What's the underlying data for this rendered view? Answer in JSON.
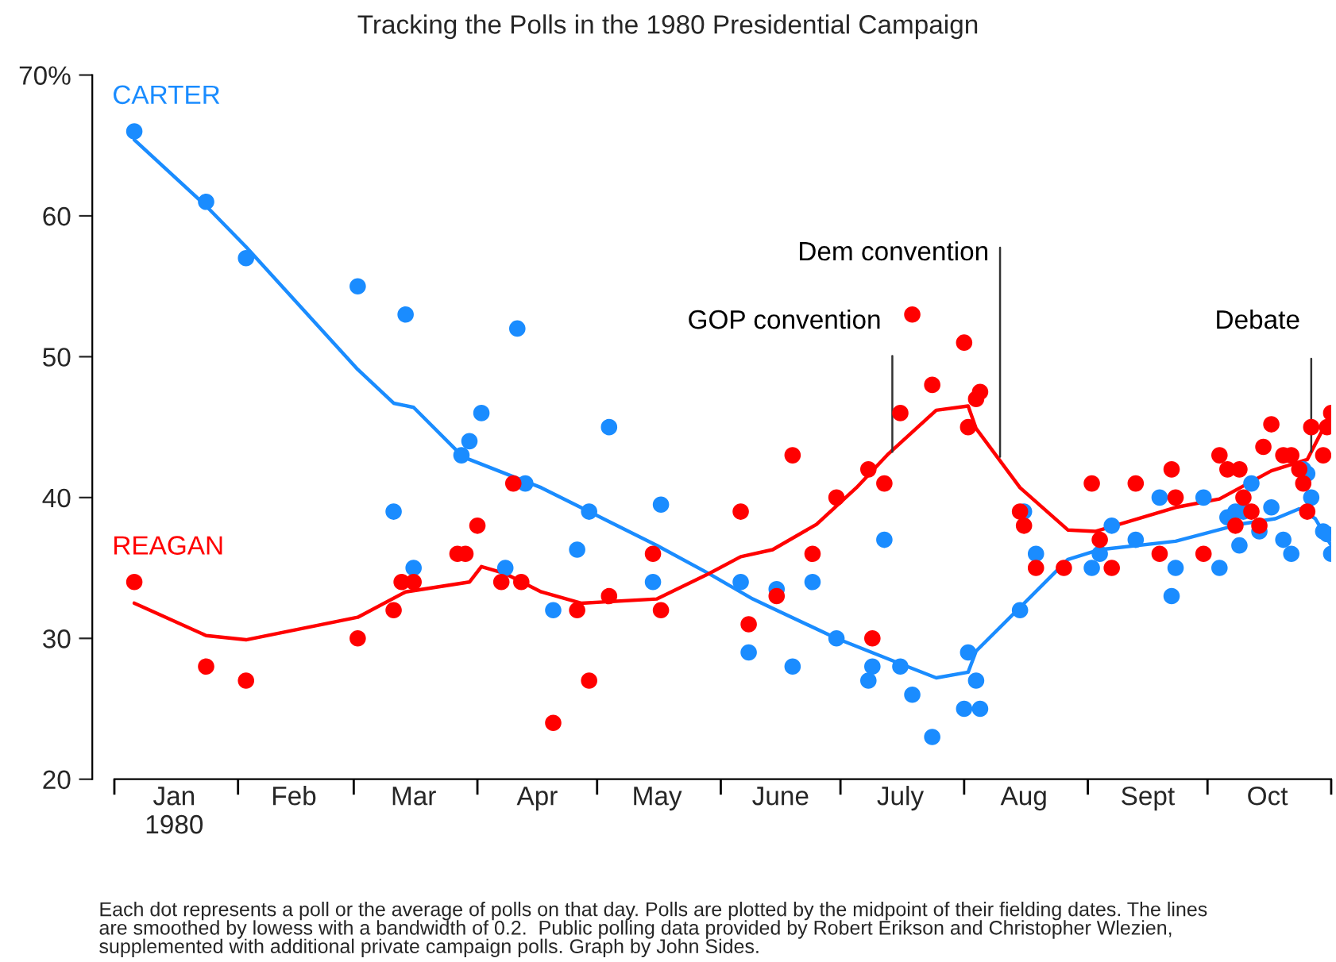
{
  "chart_data": {
    "type": "scatter",
    "title": "Tracking the Polls in the 1980 Presidential Campaign",
    "annotations": [
      "Each dot represents a poll or the average of polls on that day. Polls are plotted by the midpoint of their fielding dates. The lines\nare smoothed by lowess with a bandwidth of 0.2.  Public polling data provided by Robert Erikson and Christopher Wlezien,\nsupplemented with additional private campaign polls. Graph by John Sides."
    ],
    "xlim": [
      "1980-01-01",
      "1980-11-01"
    ],
    "xticks": [
      {
        "value": "1980-01-01",
        "label": null
      },
      {
        "value": "1980-01-16",
        "label": "Jan\n1980"
      },
      {
        "value": "1980-02-01",
        "label": null
      },
      {
        "value": "1980-02-15",
        "label": "Feb"
      },
      {
        "value": "1980-03-01",
        "label": null
      },
      {
        "value": "1980-03-16",
        "label": "Mar"
      },
      {
        "value": "1980-04-01",
        "label": null
      },
      {
        "value": "1980-04-16",
        "label": "Apr"
      },
      {
        "value": "1980-05-01",
        "label": null
      },
      {
        "value": "1980-05-16",
        "label": "May"
      },
      {
        "value": "1980-06-01",
        "label": null
      },
      {
        "value": "1980-06-16",
        "label": "June"
      },
      {
        "value": "1980-07-01",
        "label": null
      },
      {
        "value": "1980-07-16",
        "label": "July"
      },
      {
        "value": "1980-08-01",
        "label": null
      },
      {
        "value": "1980-08-16",
        "label": "Aug"
      },
      {
        "value": "1980-09-01",
        "label": null
      },
      {
        "value": "1980-09-16",
        "label": "Sept"
      },
      {
        "value": "1980-10-01",
        "label": null
      },
      {
        "value": "1980-10-16",
        "label": "Oct"
      },
      {
        "value": "1980-11-01",
        "label": null
      }
    ],
    "ylim": [
      20,
      70
    ],
    "yticks": [
      20,
      30,
      40,
      50,
      60,
      {
        "value": 70,
        "label": "70%"
      }
    ],
    "grid": false,
    "legend": false,
    "ref_lines": [
      {
        "axis": "x",
        "value": "1980-07-14",
        "label": "GOP convention",
        "color": "#333333"
      },
      {
        "axis": "x",
        "value": "1980-08-10",
        "label": "Dem convention",
        "color": "#333333"
      },
      {
        "axis": "x",
        "value": "1980-10-27",
        "label": "Debate",
        "color": "#333333"
      }
    ],
    "series": [
      {
        "name": "CARTER",
        "type": "scatter",
        "marker": "circle",
        "color": "#1a8cff",
        "x": [
          "1980-01-06",
          "1980-01-24",
          "1980-02-03",
          "1980-03-02",
          "1980-03-11",
          "1980-03-14",
          "1980-03-16",
          "1980-03-28",
          "1980-03-30",
          "1980-04-02",
          "1980-04-08",
          "1980-04-11",
          "1980-04-13",
          "1980-04-20",
          "1980-04-26",
          "1980-04-29",
          "1980-05-04",
          "1980-05-15",
          "1980-05-17",
          "1980-06-06",
          "1980-06-08",
          "1980-06-15",
          "1980-06-19",
          "1980-06-24",
          "1980-06-30",
          "1980-07-08",
          "1980-07-09",
          "1980-07-12",
          "1980-07-16",
          "1980-07-19",
          "1980-07-24",
          "1980-08-01",
          "1980-08-02",
          "1980-08-04",
          "1980-08-05",
          "1980-08-15",
          "1980-08-16",
          "1980-08-19",
          "1980-09-02",
          "1980-09-04",
          "1980-09-07",
          "1980-09-13",
          "1980-09-19",
          "1980-09-22",
          "1980-09-23",
          "1980-09-30",
          "1980-10-04",
          "1980-10-06",
          "1980-10-08",
          "1980-10-09",
          "1980-10-10",
          "1980-10-12",
          "1980-10-14",
          "1980-10-17",
          "1980-10-20",
          "1980-10-22",
          "1980-10-25",
          "1980-10-26",
          "1980-10-27",
          "1980-10-30",
          "1980-10-31",
          "1980-11-01"
        ],
        "values": [
          66,
          61,
          57,
          55,
          39,
          53,
          35,
          43,
          44,
          46,
          35,
          52,
          41,
          32,
          36.3,
          39,
          45,
          34,
          39.5,
          34,
          29,
          33.5,
          28,
          34,
          30,
          27,
          28,
          37,
          28,
          26,
          23,
          25,
          29,
          27,
          25,
          32,
          39,
          36,
          35,
          36,
          38,
          37,
          40,
          33,
          35,
          40,
          35,
          38.6,
          39,
          36.6,
          39,
          41,
          37.6,
          39.3,
          37,
          36,
          42,
          41.7,
          40,
          37.6,
          37.4,
          36
        ]
      },
      {
        "type": "line",
        "color": "#1a8cff",
        "x": [
          "1980-01-06",
          "1980-01-24",
          "1980-02-03",
          "1980-03-02",
          "1980-03-11",
          "1980-03-16",
          "1980-03-28",
          "1980-03-30",
          "1980-04-17",
          "1980-04-29",
          "1980-05-16",
          "1980-05-29",
          "1980-06-09",
          "1980-06-30",
          "1980-07-16",
          "1980-07-25",
          "1980-08-02",
          "1980-08-04",
          "1980-08-15",
          "1980-08-27",
          "1980-09-04",
          "1980-09-23",
          "1980-10-09",
          "1980-10-18",
          "1980-10-24",
          "1980-10-28",
          "1980-11-01"
        ],
        "values": [
          65.4,
          60.7,
          57.8,
          49.1,
          46.7,
          46.4,
          43,
          42.7,
          40.7,
          39,
          36.6,
          34.6,
          32.8,
          30,
          28.2,
          27.2,
          27.6,
          29.1,
          32.2,
          35.6,
          36.3,
          36.9,
          38.1,
          38.5,
          39.2,
          38.5,
          36.6
        ]
      },
      {
        "name": "REAGAN",
        "type": "scatter",
        "marker": "circle",
        "color": "#ff0000",
        "x": [
          "1980-01-06",
          "1980-01-24",
          "1980-02-03",
          "1980-03-02",
          "1980-03-11",
          "1980-03-13",
          "1980-03-16",
          "1980-03-27",
          "1980-03-29",
          "1980-04-01",
          "1980-04-07",
          "1980-04-10",
          "1980-04-12",
          "1980-04-20",
          "1980-04-26",
          "1980-04-29",
          "1980-05-04",
          "1980-05-15",
          "1980-05-17",
          "1980-06-06",
          "1980-06-08",
          "1980-06-15",
          "1980-06-19",
          "1980-06-24",
          "1980-06-30",
          "1980-07-08",
          "1980-07-09",
          "1980-07-12",
          "1980-07-16",
          "1980-07-19",
          "1980-07-24",
          "1980-08-01",
          "1980-08-02",
          "1980-08-04",
          "1980-08-05",
          "1980-08-15",
          "1980-08-16",
          "1980-08-19",
          "1980-08-26",
          "1980-09-02",
          "1980-09-04",
          "1980-09-07",
          "1980-09-13",
          "1980-09-19",
          "1980-09-22",
          "1980-09-23",
          "1980-09-30",
          "1980-10-04",
          "1980-10-06",
          "1980-10-08",
          "1980-10-09",
          "1980-10-10",
          "1980-10-12",
          "1980-10-14",
          "1980-10-15",
          "1980-10-17",
          "1980-10-20",
          "1980-10-22",
          "1980-10-24",
          "1980-10-25",
          "1980-10-26",
          "1980-10-27",
          "1980-10-30",
          "1980-10-31",
          "1980-11-01"
        ],
        "values": [
          34,
          28,
          27,
          30,
          32,
          34,
          34,
          36,
          36,
          38,
          34,
          41,
          34,
          24,
          32,
          27,
          33,
          36,
          32,
          39,
          31,
          33,
          43,
          36,
          40,
          42,
          30,
          41,
          46,
          53,
          48,
          51,
          45,
          47,
          47.5,
          39,
          38,
          35,
          35,
          41,
          37,
          35,
          41,
          36,
          42,
          40,
          36,
          43,
          42,
          38,
          42,
          40,
          39,
          38,
          43.6,
          45.2,
          43,
          43,
          42,
          41,
          39,
          45,
          43,
          45,
          46
        ]
      },
      {
        "type": "line",
        "color": "#ff0000",
        "x": [
          "1980-01-06",
          "1980-01-24",
          "1980-02-03",
          "1980-03-02",
          "1980-03-14",
          "1980-03-30",
          "1980-04-02",
          "1980-04-08",
          "1980-04-17",
          "1980-04-27",
          "1980-05-16",
          "1980-05-29",
          "1980-06-06",
          "1980-06-14",
          "1980-06-25",
          "1980-07-05",
          "1980-07-13",
          "1980-07-25",
          "1980-08-02",
          "1980-08-04",
          "1980-08-15",
          "1980-08-27",
          "1980-09-03",
          "1980-09-23",
          "1980-10-04",
          "1980-10-17",
          "1980-10-26",
          "1980-11-01"
        ],
        "values": [
          32.5,
          30.2,
          29.9,
          31.5,
          33.3,
          34,
          35.1,
          34.6,
          33.3,
          32.5,
          32.8,
          34.6,
          35.8,
          36.3,
          38.1,
          40.7,
          43.1,
          46.2,
          46.5,
          44.9,
          40.7,
          37.7,
          37.6,
          39.3,
          39.9,
          41.9,
          42.7,
          46
        ]
      }
    ]
  }
}
